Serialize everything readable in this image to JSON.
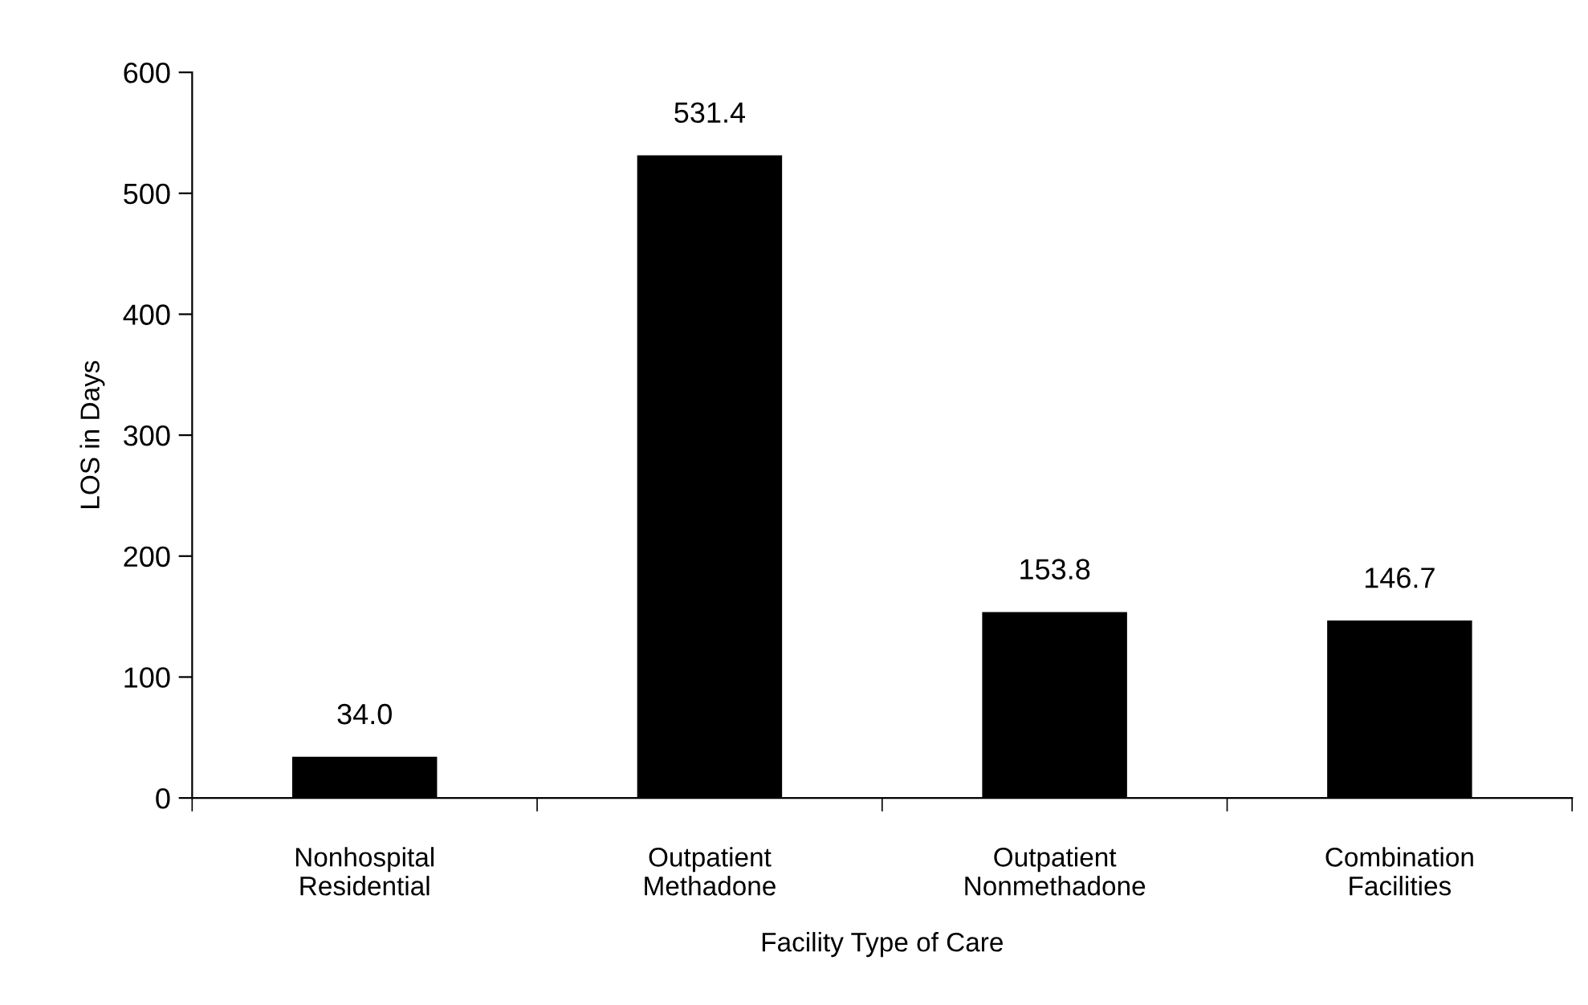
{
  "chart_data": {
    "type": "bar",
    "xlabel": "Facility Type of Care",
    "ylabel": "LOS in Days",
    "categories": [
      "Nonhospital\nResidential",
      "Outpatient\nMethadone",
      "Outpatient\nNonmethadone",
      "Combination\nFacilities"
    ],
    "values": [
      34.0,
      531.4,
      153.8,
      146.7
    ],
    "value_labels": [
      "34.0",
      "531.4",
      "153.8",
      "146.7"
    ],
    "color": "#000000",
    "ylim": [
      0,
      600
    ],
    "yticks": [
      0,
      100,
      200,
      300,
      400,
      500,
      600
    ],
    "grid": false
  }
}
